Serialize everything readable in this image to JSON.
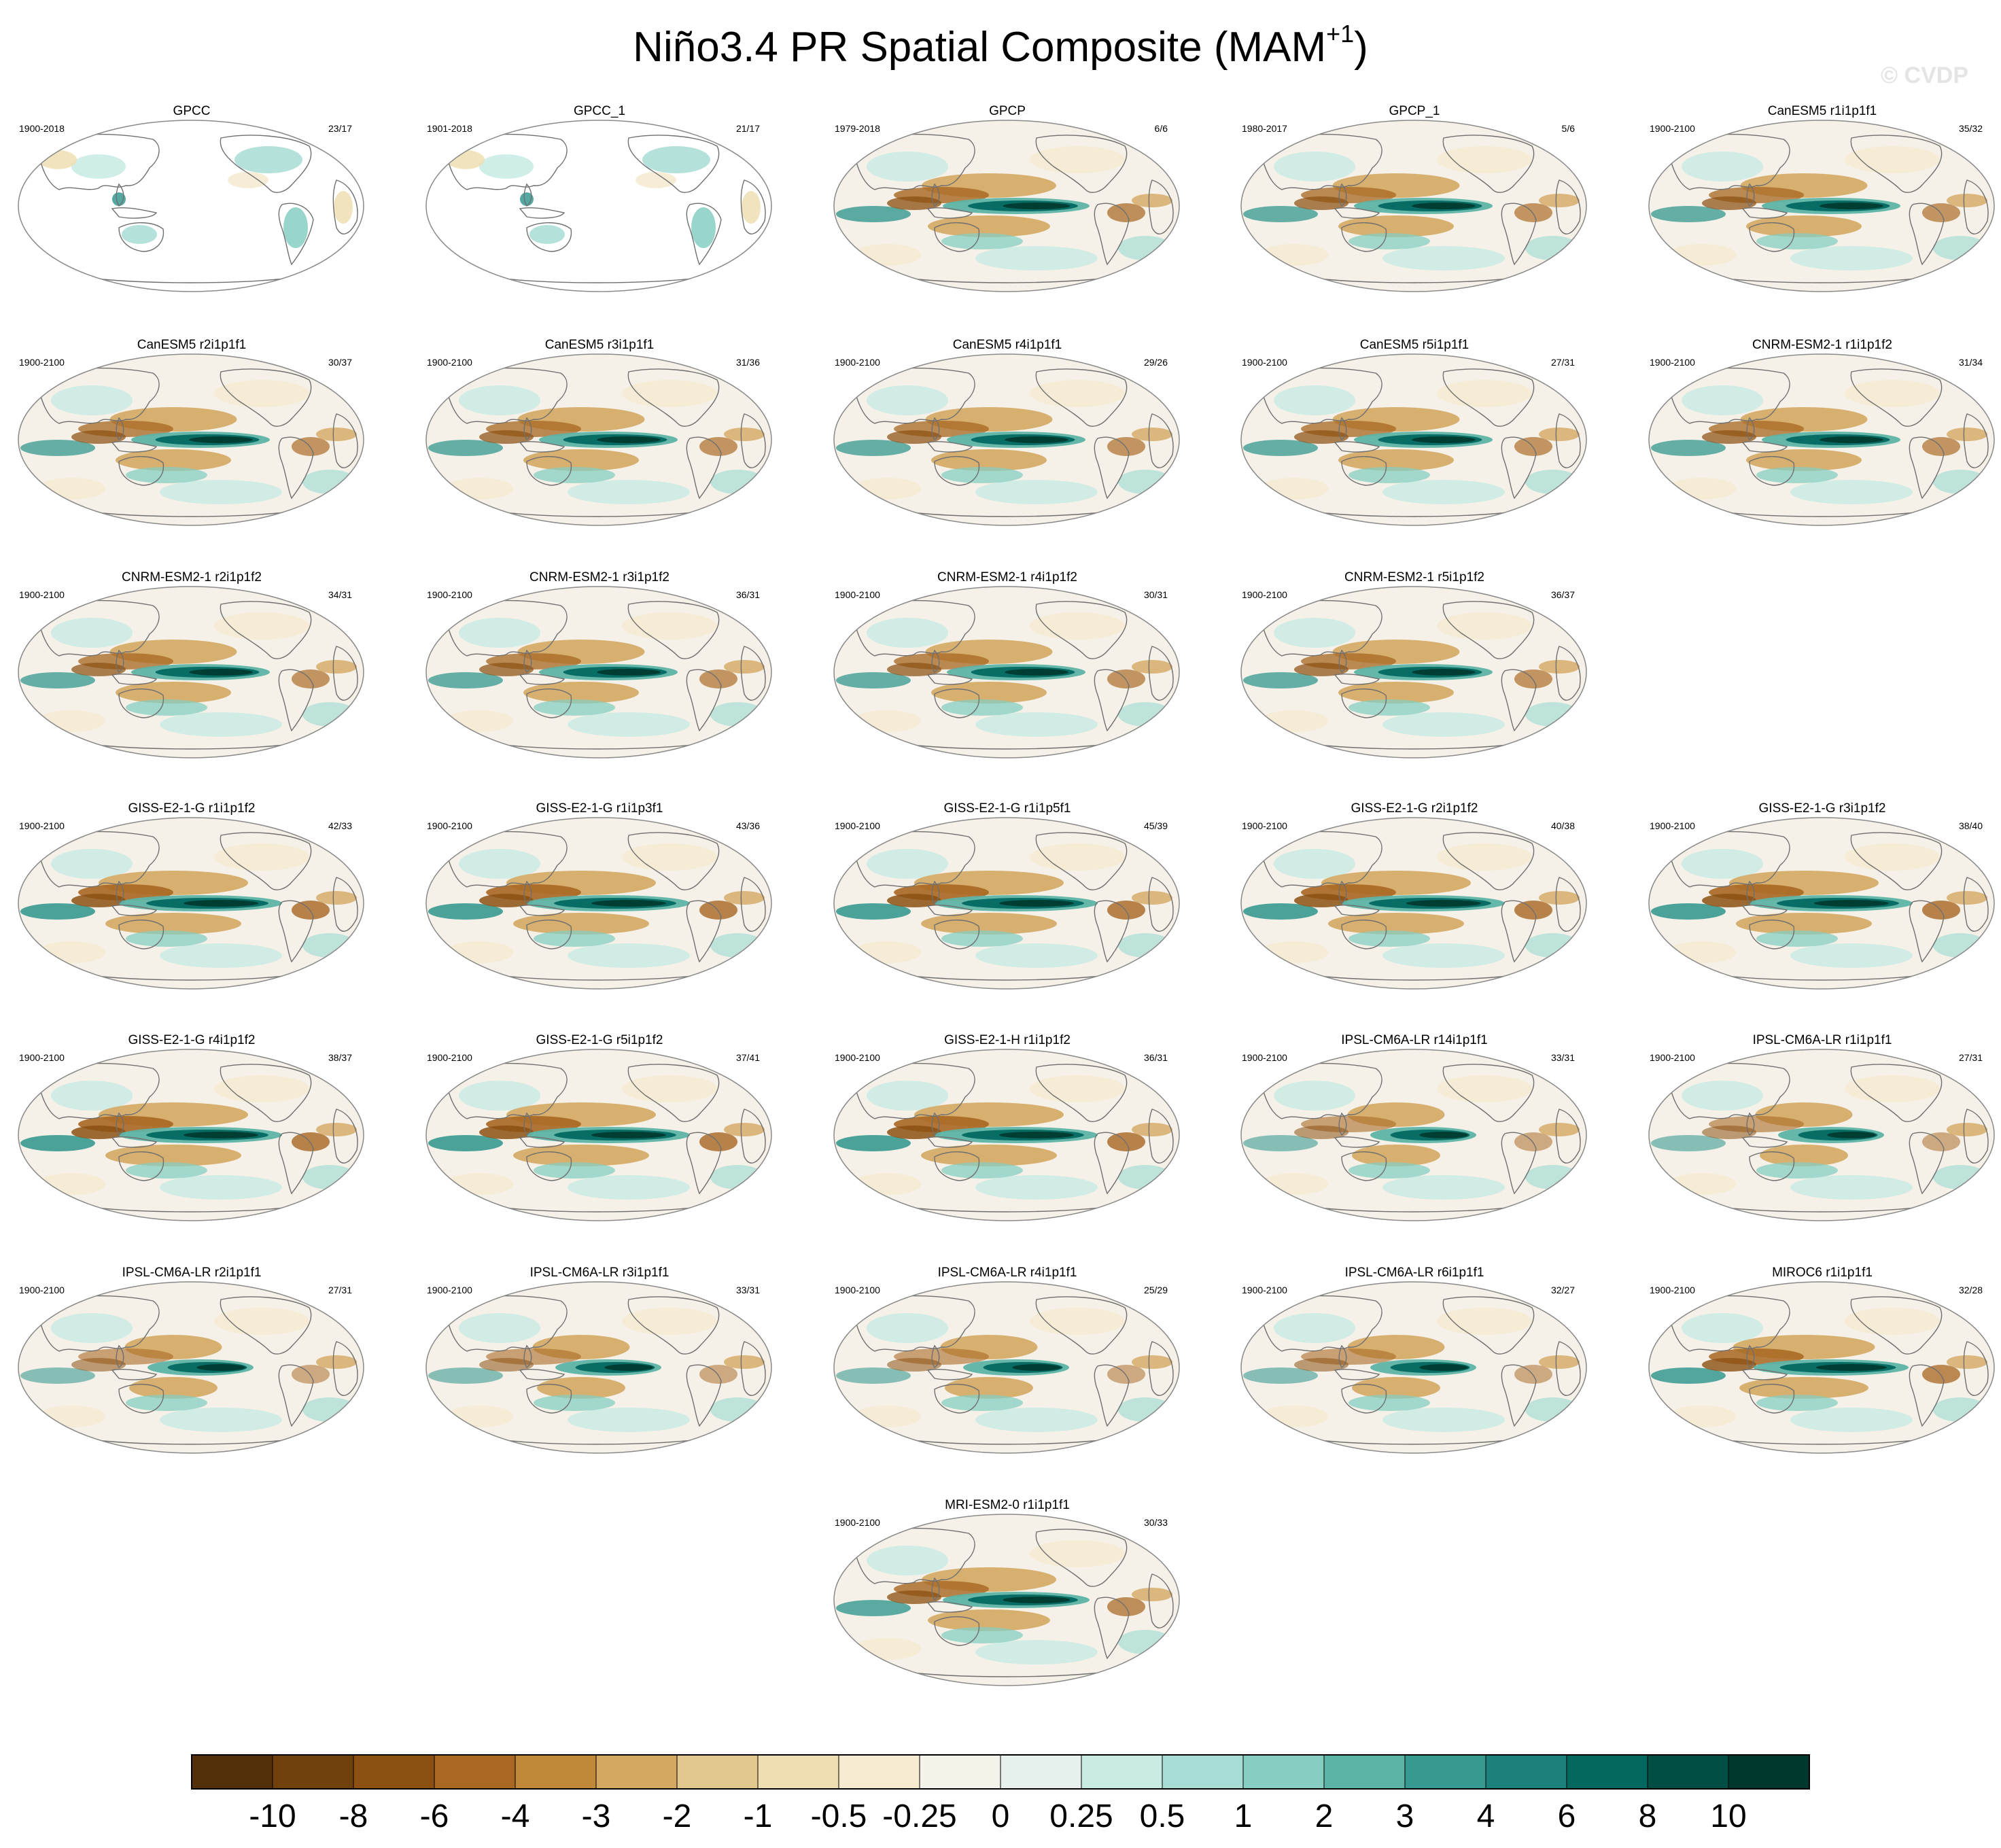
{
  "figure": {
    "title_main": "Niño3.4 PR Spatial Composite (MAM",
    "title_sup": "+1",
    "title_end": ")",
    "watermark": "© CVDP"
  },
  "colors": {
    "land_outline": "#6f6f6f",
    "background": "#ffffff",
    "neutral": "#f5f1e8"
  },
  "panels": [
    {
      "title": "GPCC",
      "period": "1900-2018",
      "count": "23/17",
      "land_only": true,
      "intensity": 0.5,
      "row": 0,
      "col": 0
    },
    {
      "title": "GPCC_1",
      "period": "1901-2018",
      "count": "21/17",
      "land_only": true,
      "intensity": 0.5,
      "row": 0,
      "col": 1
    },
    {
      "title": "GPCP",
      "period": "1979-2018",
      "count": "6/6",
      "land_only": false,
      "intensity": 0.9,
      "row": 0,
      "col": 2
    },
    {
      "title": "GPCP_1",
      "period": "1980-2017",
      "count": "5/6",
      "land_only": false,
      "intensity": 0.85,
      "row": 0,
      "col": 3
    },
    {
      "title": "CanESM5 r1i1p1f1",
      "period": "1900-2100",
      "count": "35/32",
      "land_only": false,
      "intensity": 0.85,
      "row": 0,
      "col": 4
    },
    {
      "title": "CanESM5 r2i1p1f1",
      "period": "1900-2100",
      "count": "30/37",
      "land_only": false,
      "intensity": 0.85,
      "row": 1,
      "col": 0
    },
    {
      "title": "CanESM5 r3i1p1f1",
      "period": "1900-2100",
      "count": "31/36",
      "land_only": false,
      "intensity": 0.85,
      "row": 1,
      "col": 1
    },
    {
      "title": "CanESM5 r4i1p1f1",
      "period": "1900-2100",
      "count": "29/26",
      "land_only": false,
      "intensity": 0.85,
      "row": 1,
      "col": 2
    },
    {
      "title": "CanESM5 r5i1p1f1",
      "period": "1900-2100",
      "count": "27/31",
      "land_only": false,
      "intensity": 0.85,
      "row": 1,
      "col": 3
    },
    {
      "title": "CNRM-ESM2-1 r1i1p1f2",
      "period": "1900-2100",
      "count": "31/34",
      "land_only": false,
      "intensity": 0.85,
      "row": 1,
      "col": 4
    },
    {
      "title": "CNRM-ESM2-1 r2i1p1f2",
      "period": "1900-2100",
      "count": "34/31",
      "land_only": false,
      "intensity": 0.85,
      "row": 2,
      "col": 0
    },
    {
      "title": "CNRM-ESM2-1 r3i1p1f2",
      "period": "1900-2100",
      "count": "36/31",
      "land_only": false,
      "intensity": 0.85,
      "row": 2,
      "col": 1
    },
    {
      "title": "CNRM-ESM2-1 r4i1p1f2",
      "period": "1900-2100",
      "count": "30/31",
      "land_only": false,
      "intensity": 0.85,
      "row": 2,
      "col": 2
    },
    {
      "title": "CNRM-ESM2-1 r5i1p1f2",
      "period": "1900-2100",
      "count": "36/37",
      "land_only": false,
      "intensity": 0.85,
      "row": 2,
      "col": 3
    },
    {
      "title": "GISS-E2-1-G r1i1p1f2",
      "period": "1900-2100",
      "count": "42/33",
      "land_only": false,
      "intensity": 1.0,
      "row": 3,
      "col": 0
    },
    {
      "title": "GISS-E2-1-G r1i1p3f1",
      "period": "1900-2100",
      "count": "43/36",
      "land_only": false,
      "intensity": 1.0,
      "row": 3,
      "col": 1
    },
    {
      "title": "GISS-E2-1-G r1i1p5f1",
      "period": "1900-2100",
      "count": "45/39",
      "land_only": false,
      "intensity": 1.0,
      "row": 3,
      "col": 2
    },
    {
      "title": "GISS-E2-1-G r2i1p1f2",
      "period": "1900-2100",
      "count": "40/38",
      "land_only": false,
      "intensity": 1.0,
      "row": 3,
      "col": 3
    },
    {
      "title": "GISS-E2-1-G r3i1p1f2",
      "period": "1900-2100",
      "count": "38/40",
      "land_only": false,
      "intensity": 1.0,
      "row": 3,
      "col": 4
    },
    {
      "title": "GISS-E2-1-G r4i1p1f2",
      "period": "1900-2100",
      "count": "38/37",
      "land_only": false,
      "intensity": 1.0,
      "row": 4,
      "col": 0
    },
    {
      "title": "GISS-E2-1-G r5i1p1f2",
      "period": "1900-2100",
      "count": "37/41",
      "land_only": false,
      "intensity": 1.0,
      "row": 4,
      "col": 1
    },
    {
      "title": "GISS-E2-1-H r1i1p1f2",
      "period": "1900-2100",
      "count": "36/31",
      "land_only": false,
      "intensity": 1.0,
      "row": 4,
      "col": 2
    },
    {
      "title": "IPSL-CM6A-LR r14i1p1f1",
      "period": "1900-2100",
      "count": "33/31",
      "land_only": false,
      "intensity": 0.65,
      "row": 4,
      "col": 3
    },
    {
      "title": "IPSL-CM6A-LR r1i1p1f1",
      "period": "1900-2100",
      "count": "27/31",
      "land_only": false,
      "intensity": 0.65,
      "row": 4,
      "col": 4
    },
    {
      "title": "IPSL-CM6A-LR r2i1p1f1",
      "period": "1900-2100",
      "count": "27/31",
      "land_only": false,
      "intensity": 0.65,
      "row": 5,
      "col": 0
    },
    {
      "title": "IPSL-CM6A-LR r3i1p1f1",
      "period": "1900-2100",
      "count": "33/31",
      "land_only": false,
      "intensity": 0.65,
      "row": 5,
      "col": 1
    },
    {
      "title": "IPSL-CM6A-LR r4i1p1f1",
      "period": "1900-2100",
      "count": "25/29",
      "land_only": false,
      "intensity": 0.65,
      "row": 5,
      "col": 2
    },
    {
      "title": "IPSL-CM6A-LR r6i1p1f1",
      "period": "1900-2100",
      "count": "32/27",
      "land_only": false,
      "intensity": 0.65,
      "row": 5,
      "col": 3
    },
    {
      "title": "MIROC6 r1i1p1f1",
      "period": "1900-2100",
      "count": "32/28",
      "land_only": false,
      "intensity": 0.95,
      "row": 5,
      "col": 4
    },
    {
      "title": "MRI-ESM2-0 r1i1p1f1",
      "period": "1900-2100",
      "count": "30/33",
      "land_only": false,
      "intensity": 0.9,
      "row": 6,
      "col": 2
    }
  ],
  "colorbar": {
    "labels": [
      "-10",
      "-8",
      "-6",
      "-4",
      "-3",
      "-2",
      "-1",
      "-0.5",
      "-0.25",
      "0",
      "0.25",
      "0.5",
      "1",
      "2",
      "3",
      "4",
      "6",
      "8",
      "10"
    ],
    "colors": [
      "#54300a",
      "#70400d",
      "#8c5112",
      "#a86722",
      "#c1883a",
      "#d4a862",
      "#e2c78f",
      "#efdeb1",
      "#f6ead0",
      "#f5f2e9",
      "#e6f1ee",
      "#c8ebe4",
      "#a7ddd4",
      "#86cec2",
      "#5db3a6",
      "#379990",
      "#1b817a",
      "#036860",
      "#014f44",
      "#00382e"
    ]
  }
}
